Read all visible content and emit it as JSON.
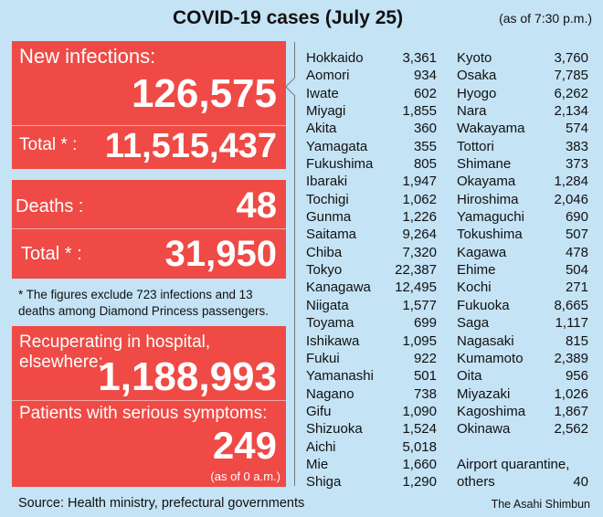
{
  "header": {
    "title": "COVID-19 cases (July 25)",
    "as_of": "(as of 7:30 p.m.)"
  },
  "new_infections": {
    "label": "New infections:",
    "value": "126,575",
    "total_label": "Total * :",
    "total_value": "11,515,437"
  },
  "deaths": {
    "label": "Deaths :",
    "value": "48",
    "total_label": "Total * :",
    "total_value": "31,950"
  },
  "note": {
    "line1": "* The figures exclude 723 infections and 13",
    "line2": "deaths among Diamond Princess passengers."
  },
  "recuperating": {
    "label": "Recuperating in hospital, elsewhere:",
    "value": "1,188,993",
    "serious_label": "Patients with serious symptoms:",
    "serious_value": "249",
    "serious_note": "(as of 0 a.m.)"
  },
  "prefectures_left": [
    [
      "Hokkaido",
      "3,361"
    ],
    [
      "Aomori",
      "934"
    ],
    [
      "Iwate",
      "602"
    ],
    [
      "Miyagi",
      "1,855"
    ],
    [
      "Akita",
      "360"
    ],
    [
      "Yamagata",
      "355"
    ],
    [
      "Fukushima",
      "805"
    ],
    [
      "Ibaraki",
      "1,947"
    ],
    [
      "Tochigi",
      "1,062"
    ],
    [
      "Gunma",
      "1,226"
    ],
    [
      "Saitama",
      "9,264"
    ],
    [
      "Chiba",
      "7,320"
    ],
    [
      "Tokyo",
      "22,387"
    ],
    [
      "Kanagawa",
      "12,495"
    ],
    [
      "Niigata",
      "1,577"
    ],
    [
      "Toyama",
      "699"
    ],
    [
      "Ishikawa",
      "1,095"
    ],
    [
      "Fukui",
      "922"
    ],
    [
      "Yamanashi",
      "501"
    ],
    [
      "Nagano",
      "738"
    ],
    [
      "Gifu",
      "1,090"
    ],
    [
      "Shizuoka",
      "1,524"
    ],
    [
      "Aichi",
      "5,018"
    ],
    [
      "Mie",
      "1,660"
    ],
    [
      "Shiga",
      "1,290"
    ]
  ],
  "prefectures_right": [
    [
      "Kyoto",
      "3,760"
    ],
    [
      "Osaka",
      "7,785"
    ],
    [
      "Hyogo",
      "6,262"
    ],
    [
      "Nara",
      "2,134"
    ],
    [
      "Wakayama",
      "574"
    ],
    [
      "Tottori",
      "383"
    ],
    [
      "Shimane",
      "373"
    ],
    [
      "Okayama",
      "1,284"
    ],
    [
      "Hiroshima",
      "2,046"
    ],
    [
      "Yamaguchi",
      "690"
    ],
    [
      "Tokushima",
      "507"
    ],
    [
      "Kagawa",
      "478"
    ],
    [
      "Ehime",
      "504"
    ],
    [
      "Kochi",
      "271"
    ],
    [
      "Fukuoka",
      "8,665"
    ],
    [
      "Saga",
      "1,117"
    ],
    [
      "Nagasaki",
      "815"
    ],
    [
      "Kumamoto",
      "2,389"
    ],
    [
      "Oita",
      "956"
    ],
    [
      "Miyazaki",
      "1,026"
    ],
    [
      "Kagoshima",
      "1,867"
    ],
    [
      "Okinawa",
      "2,562"
    ]
  ],
  "airport": {
    "label1": "Airport quarantine,",
    "label2": "others",
    "value": "40"
  },
  "footer": {
    "source": "Source: Health ministry, prefectural governments",
    "credit": "The Asahi Shimbun"
  },
  "colors": {
    "background": "#c4e3f5",
    "panel_red": "#ef4a45"
  }
}
